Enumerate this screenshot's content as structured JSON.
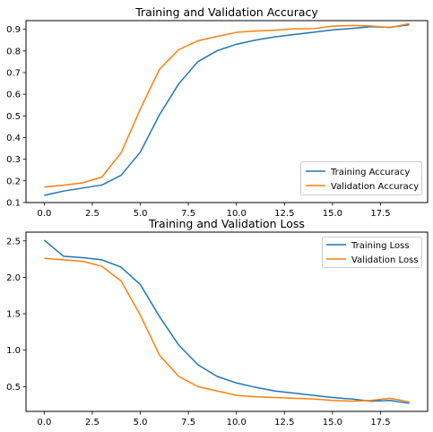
{
  "chart_data": [
    {
      "type": "line",
      "title": "Training and Validation Accuracy",
      "xlabel": "",
      "ylabel": "",
      "x": [
        0,
        1,
        2,
        3,
        4,
        5,
        6,
        7,
        8,
        9,
        10,
        11,
        12,
        13,
        14,
        15,
        16,
        17,
        18,
        19
      ],
      "xlim": [
        -0.95,
        19.95
      ],
      "ylim": [
        0.1,
        0.94
      ],
      "xticks": [
        0.0,
        2.5,
        5.0,
        7.5,
        10.0,
        12.5,
        15.0,
        17.5
      ],
      "xtick_labels": [
        "0.0",
        "2.5",
        "5.0",
        "7.5",
        "10.0",
        "12.5",
        "15.0",
        "17.5"
      ],
      "yticks": [
        0.1,
        0.2,
        0.3,
        0.4,
        0.5,
        0.6,
        0.7,
        0.8,
        0.9
      ],
      "ytick_labels": [
        "0.1",
        "0.2",
        "0.3",
        "0.4",
        "0.5",
        "0.6",
        "0.7",
        "0.8",
        "0.9"
      ],
      "grid": false,
      "legend_position": "lower-right",
      "series": [
        {
          "name": "Training Accuracy",
          "color": "#1f77b4",
          "values": [
            0.133,
            0.153,
            0.167,
            0.181,
            0.226,
            0.333,
            0.506,
            0.648,
            0.751,
            0.801,
            0.831,
            0.85,
            0.865,
            0.876,
            0.886,
            0.897,
            0.904,
            0.912,
            0.909,
            0.921
          ]
        },
        {
          "name": "Validation Accuracy",
          "color": "#ff7f0e",
          "values": [
            0.172,
            0.18,
            0.191,
            0.218,
            0.33,
            0.532,
            0.716,
            0.806,
            0.847,
            0.867,
            0.886,
            0.892,
            0.896,
            0.902,
            0.903,
            0.914,
            0.918,
            0.915,
            0.908,
            0.926
          ]
        }
      ]
    },
    {
      "type": "line",
      "title": "Training and Validation Loss",
      "xlabel": "",
      "ylabel": "",
      "x": [
        0,
        1,
        2,
        3,
        4,
        5,
        6,
        7,
        8,
        9,
        10,
        11,
        12,
        13,
        14,
        15,
        16,
        17,
        18,
        19
      ],
      "xlim": [
        -0.95,
        19.95
      ],
      "ylim": [
        0.16,
        2.62
      ],
      "xticks": [
        0.0,
        2.5,
        5.0,
        7.5,
        10.0,
        12.5,
        15.0,
        17.5
      ],
      "xtick_labels": [
        "0.0",
        "2.5",
        "5.0",
        "7.5",
        "10.0",
        "12.5",
        "15.0",
        "17.5"
      ],
      "yticks": [
        0.5,
        1.0,
        1.5,
        2.0,
        2.5
      ],
      "ytick_labels": [
        "0.5",
        "1.0",
        "1.5",
        "2.0",
        "2.5"
      ],
      "grid": false,
      "legend_position": "upper-right",
      "series": [
        {
          "name": "Training Loss",
          "color": "#1f77b4",
          "values": [
            2.51,
            2.29,
            2.27,
            2.24,
            2.14,
            1.9,
            1.46,
            1.07,
            0.8,
            0.64,
            0.55,
            0.49,
            0.44,
            0.41,
            0.38,
            0.35,
            0.33,
            0.3,
            0.31,
            0.27
          ]
        },
        {
          "name": "Validation Loss",
          "color": "#ff7f0e",
          "values": [
            2.26,
            2.24,
            2.22,
            2.15,
            1.95,
            1.48,
            0.93,
            0.64,
            0.5,
            0.44,
            0.38,
            0.36,
            0.35,
            0.34,
            0.33,
            0.31,
            0.3,
            0.31,
            0.34,
            0.29
          ]
        }
      ]
    }
  ]
}
